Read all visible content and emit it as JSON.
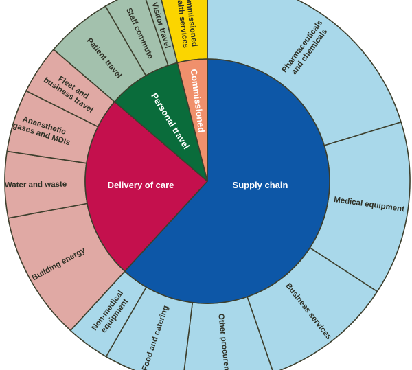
{
  "chart_data": {
    "type": "pie",
    "subtype": "sunburst",
    "description": "Two-ring sunburst (donut) chart of carbon footprint composition; inner ring shows four top-level categories, outer ring shows their sub-categories. No numeric labels are printed; percentages are estimated from segment angles. Angles are degrees clockwise from 12 o'clock.",
    "legend": "none",
    "palette": {
      "dark_blue": "#0d57a7",
      "light_blue": "#a9d8ea",
      "crimson": "#c4104d",
      "dusty_pink": "#e0a9a4",
      "dark_green": "#0a6c3b",
      "sage_green": "#a3c1ad",
      "salmon": "#f0906c",
      "yellow": "#fbd500",
      "outline": "#3d3f2d",
      "outer_text": "#2f3126",
      "inner_text": "#ffffff"
    },
    "inner_ring": [
      {
        "name": "supply-chain",
        "label": "Supply chain",
        "lines": [
          "Supply chain"
        ],
        "color": "dark_blue",
        "start_deg": 0,
        "end_deg": 222.5,
        "value_pct": 61.8
      },
      {
        "name": "delivery-of-care",
        "label": "Delivery of care",
        "lines": [
          "Delivery of care"
        ],
        "color": "crimson",
        "start_deg": 222.5,
        "end_deg": 310.6,
        "value_pct": 24.5
      },
      {
        "name": "personal-travel",
        "label": "Personal travel",
        "lines": [
          "Personal travel"
        ],
        "color": "dark_green",
        "start_deg": 310.6,
        "end_deg": 345.8,
        "value_pct": 9.8
      },
      {
        "name": "commissioned",
        "label": "Commissioned",
        "lines": [
          "Commissioned"
        ],
        "color": "salmon",
        "start_deg": 345.8,
        "end_deg": 360,
        "value_pct": 3.9
      }
    ],
    "outer_ring": [
      {
        "name": "pharmaceuticals-and-chemicals",
        "label": "Pharmaceuticals and chemicals",
        "lines": [
          "Pharmaceuticals",
          "and chemicals"
        ],
        "color": "light_blue",
        "start_deg": 0,
        "end_deg": 73,
        "value_pct": 20.3
      },
      {
        "name": "medical-equipment",
        "label": "Medical equipment",
        "lines": [
          "Medical equipment"
        ],
        "color": "light_blue",
        "start_deg": 73,
        "end_deg": 123,
        "value_pct": 13.9
      },
      {
        "name": "business-services",
        "label": "Business services",
        "lines": [
          "Business services"
        ],
        "color": "light_blue",
        "start_deg": 123,
        "end_deg": 161,
        "value_pct": 10.6
      },
      {
        "name": "other-procurement",
        "label": "Other procurement",
        "lines": [
          "Other procurement"
        ],
        "color": "light_blue",
        "start_deg": 161,
        "end_deg": 187,
        "value_pct": 7.2
      },
      {
        "name": "food-and-catering",
        "label": "Food and catering",
        "lines": [
          "Food and catering"
        ],
        "color": "light_blue",
        "start_deg": 187,
        "end_deg": 210,
        "value_pct": 6.4
      },
      {
        "name": "non-medical-equipment",
        "label": "Non-medical equipment",
        "lines": [
          "Non-medical",
          "equipment"
        ],
        "color": "light_blue",
        "start_deg": 210,
        "end_deg": 222.5,
        "value_pct": 3.5
      },
      {
        "name": "building-energy",
        "label": "Building energy",
        "lines": [
          "Building energy"
        ],
        "color": "dusty_pink",
        "start_deg": 222.5,
        "end_deg": 259.5,
        "value_pct": 10.3
      },
      {
        "name": "water-and-waste",
        "label": "Water and waste",
        "lines": [
          "Water and waste"
        ],
        "color": "dusty_pink",
        "start_deg": 259.5,
        "end_deg": 278.5,
        "value_pct": 5.3
      },
      {
        "name": "anaesthetic-gases-and-mdis",
        "label": "Anaesthetic gases and MDIs",
        "lines": [
          "Anaesthetic",
          "gases and MDIs"
        ],
        "color": "dusty_pink",
        "start_deg": 278.5,
        "end_deg": 296.5,
        "value_pct": 5.0
      },
      {
        "name": "fleet-and-business-travel",
        "label": "Fleet and business travel",
        "lines": [
          "Fleet and",
          "business travel"
        ],
        "color": "dusty_pink",
        "start_deg": 296.5,
        "end_deg": 310.6,
        "value_pct": 3.9
      },
      {
        "name": "patient-travel",
        "label": "Patient travel",
        "lines": [
          "Patient travel"
        ],
        "color": "sage_green",
        "start_deg": 310.6,
        "end_deg": 329.8,
        "value_pct": 5.3
      },
      {
        "name": "staff-commute",
        "label": "Staff commute",
        "lines": [
          "Staff commute"
        ],
        "color": "sage_green",
        "start_deg": 329.8,
        "end_deg": 341.3,
        "value_pct": 3.2
      },
      {
        "name": "visitor-travel",
        "label": "Visitor travel",
        "lines": [
          "Visitor travel"
        ],
        "color": "sage_green",
        "start_deg": 341.3,
        "end_deg": 345.8,
        "value_pct": 1.3
      },
      {
        "name": "commissioned-health-services",
        "label": "Commissioned health services",
        "lines": [
          "Commissioned",
          "health services"
        ],
        "color": "yellow",
        "start_deg": 345.8,
        "end_deg": 360,
        "value_pct": 3.9
      }
    ]
  }
}
